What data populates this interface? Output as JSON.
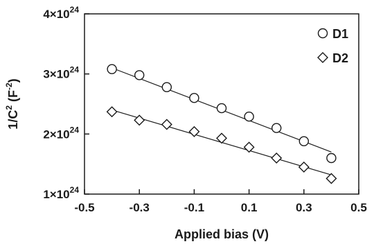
{
  "chart_data": {
    "type": "scatter",
    "title": "",
    "xlabel": "Applied bias (V)",
    "ylabel": {
      "base": "1/C",
      "sup": "2",
      "unit_base": " (F",
      "unit_sup": "-2",
      "unit_close": ")"
    },
    "xlim": [
      -0.5,
      0.5
    ],
    "ylim": [
      1e+24,
      4e+24
    ],
    "x_ticks": [
      {
        "value": -0.5,
        "label": "-0.5"
      },
      {
        "value": -0.3,
        "label": "-0.3"
      },
      {
        "value": -0.1,
        "label": "-0.1"
      },
      {
        "value": 0.1,
        "label": "0.1"
      },
      {
        "value": 0.3,
        "label": "0.3"
      },
      {
        "value": 0.5,
        "label": "0.5"
      }
    ],
    "y_ticks": [
      {
        "value": 1e+24,
        "mantissa": "1×10",
        "exponent": "24"
      },
      {
        "value": 2e+24,
        "mantissa": "2×10",
        "exponent": "24"
      },
      {
        "value": 3e+24,
        "mantissa": "3×10",
        "exponent": "24"
      },
      {
        "value": 4e+24,
        "mantissa": "4×10",
        "exponent": "24"
      }
    ],
    "grid": false,
    "legend_position": "top-right",
    "series": [
      {
        "name": "D1",
        "marker": "circle",
        "x": [
          -0.4,
          -0.3,
          -0.2,
          -0.1,
          0.0,
          0.1,
          0.2,
          0.3,
          0.4
        ],
        "y": [
          3.08e+24,
          2.98e+24,
          2.78e+24,
          2.6e+24,
          2.43e+24,
          2.29e+24,
          2.1e+24,
          1.88e+24,
          1.6e+24
        ],
        "fit": {
          "x": [
            -0.4,
            0.4
          ],
          "y": [
            3.1e+24,
            1.7e+24
          ]
        }
      },
      {
        "name": "D2",
        "marker": "diamond",
        "x": [
          -0.4,
          -0.3,
          -0.2,
          -0.1,
          0.0,
          0.1,
          0.2,
          0.3,
          0.4
        ],
        "y": [
          2.37e+24,
          2.23e+24,
          2.16e+24,
          2.04e+24,
          1.93e+24,
          1.78e+24,
          1.6e+24,
          1.45e+24,
          1.26e+24
        ],
        "fit": {
          "x": [
            -0.4,
            0.4
          ],
          "y": [
            2.4e+24,
            1.32e+24
          ]
        }
      }
    ]
  }
}
